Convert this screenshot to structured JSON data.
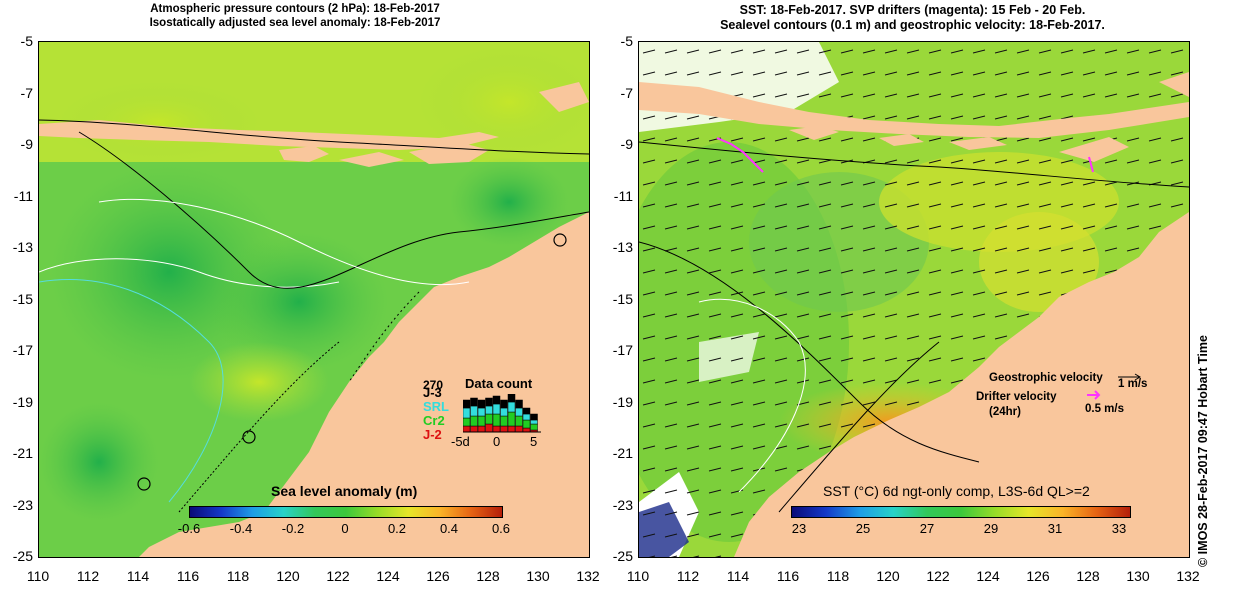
{
  "left_panel": {
    "title_line1": "Atmospheric pressure contours (2 hPa): 18-Feb-2017",
    "title_line2": "Isostatically adjusted sea level anomaly: 18-Feb-2017",
    "colorbar_label": "Sea level anomaly (m)",
    "colorbar_ticks": [
      "-0.6",
      "-0.4",
      "-0.2",
      "0",
      "0.2",
      "0.4",
      "0.6"
    ],
    "data_count": {
      "title": "Data count",
      "max_label": "270",
      "sat_labels": [
        "J-3",
        "SRL",
        "Cr2",
        "J-2"
      ],
      "sat_colors": [
        "#000000",
        "#33dddd",
        "#22cc22",
        "#dd1111"
      ],
      "x_ticks": [
        "-5d",
        "0",
        "5"
      ]
    }
  },
  "right_panel": {
    "title_line1": "SST: 18-Feb-2017. SVP drifters (magenta): 15 Feb - 20 Feb.",
    "title_line2": "Sealevel contours (0.1 m) and geostrophic velocity: 18-Feb-2017.",
    "colorbar_label": "SST (°C) 6d ngt-only comp, L3S-6d QL>=2",
    "colorbar_ticks": [
      "23",
      "25",
      "27",
      "29",
      "31",
      "33"
    ],
    "geostrophic_label": "Geostrophic velocity",
    "geostrophic_scale": "1 m/s",
    "drifter_label_line1": "Drifter velocity",
    "drifter_label_line2": "(24hr)",
    "drifter_scale": "0.5 m/s"
  },
  "axes": {
    "y_ticks": [
      "-5",
      "-7",
      "-9",
      "-11",
      "-13",
      "-15",
      "-17",
      "-19",
      "-21",
      "-23",
      "-25"
    ],
    "x_ticks": [
      "110",
      "112",
      "114",
      "116",
      "118",
      "120",
      "122",
      "124",
      "126",
      "128",
      "130",
      "132"
    ]
  },
  "copyright": "© IMOS 28-Feb-2017 09:47 Hobart Time",
  "colors": {
    "land": "#f9c69c",
    "sla_ocean": "#7fd84a",
    "sst_ocean": "#9ad83a",
    "drifter": "#ff33ff"
  }
}
